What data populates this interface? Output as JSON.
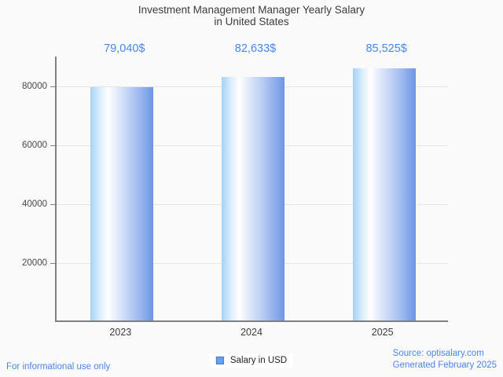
{
  "chart_data": {
    "type": "bar",
    "title": "Investment Management Manager Yearly Salary",
    "subtitle": "in United States",
    "categories": [
      "2023",
      "2024",
      "2025"
    ],
    "values": [
      79040,
      82633,
      85525
    ],
    "value_labels": [
      "79,040$",
      "82,633$",
      "85,525$"
    ],
    "series_name": "Salary in USD",
    "ylim": [
      0,
      90000
    ],
    "yticks": [
      20000,
      40000,
      60000,
      80000
    ],
    "ytick_labels": [
      "20000",
      "40000",
      "60000",
      "80000"
    ],
    "grid": true,
    "legend_position": "bottom-center",
    "colors": {
      "bar_gradient": [
        "#a5d2f6",
        "#daeefc",
        "#ffffff",
        "#e3ebfb",
        "#b8cdf4",
        "#6e96e6"
      ],
      "value_label": "#4a86e8",
      "axis": "#808080",
      "gridline": "#e5e5e5",
      "tick_text": "#464646",
      "title_text": "#3c3c3c"
    }
  },
  "legend": {
    "label": "Salary in USD",
    "swatch_fill": "#6d9eeb",
    "swatch_border": "#3c78d8"
  },
  "footer": {
    "disclaimer": "For informational use only",
    "source_line1": "Source: optisalary.com",
    "source_line2": "Generated February 2025"
  }
}
